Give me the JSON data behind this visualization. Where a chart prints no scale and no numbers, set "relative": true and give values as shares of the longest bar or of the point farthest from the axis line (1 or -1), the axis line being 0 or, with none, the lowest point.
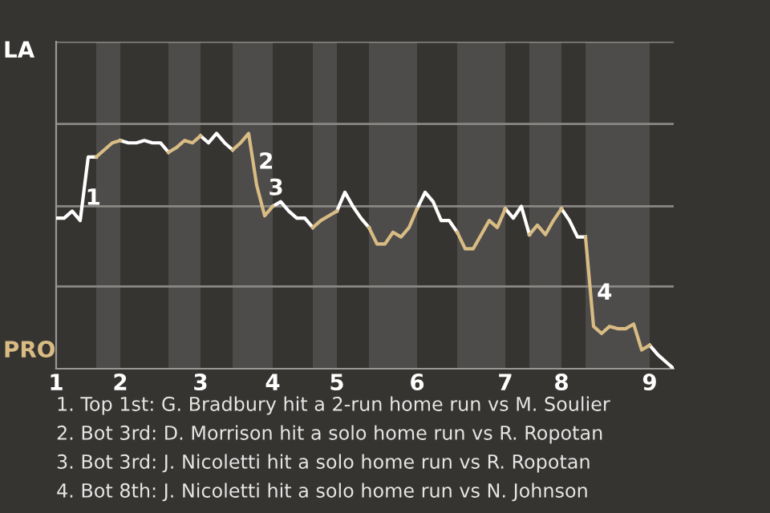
{
  "chart_data": {
    "type": "line",
    "relative": true,
    "categories": [
      "1",
      null,
      null,
      null,
      null,
      null,
      null,
      null,
      "2",
      null,
      null,
      null,
      null,
      null,
      null,
      null,
      null,
      null,
      "3",
      null,
      null,
      null,
      null,
      null,
      null,
      null,
      null,
      "4",
      null,
      null,
      null,
      null,
      null,
      null,
      null,
      "5",
      null,
      null,
      null,
      null,
      null,
      null,
      null,
      null,
      null,
      "6",
      null,
      null,
      null,
      null,
      null,
      null,
      null,
      null,
      null,
      null,
      "7",
      null,
      null,
      null,
      null,
      null,
      null,
      "8",
      null,
      null,
      null,
      null,
      null,
      null,
      null,
      null,
      null,
      null,
      "9",
      null,
      null,
      null
    ],
    "ref_lines": [
      {
        "axis": "y",
        "value": 0.35,
        "color": "#8a8885"
      },
      {
        "axis": "y",
        "value": 0.69,
        "color": "#8a8885"
      },
      {
        "axis": "y",
        "value": 1.04,
        "color": "#8a8885"
      },
      {
        "axis": "y",
        "value": 1.39,
        "color": "#8a8885"
      }
    ],
    "line_style": "solid",
    "marker": "none",
    "series": [
      {
        "color": "#ffffff",
        "values": [
          0.64,
          0.64,
          0.67,
          0.63,
          0.9,
          0.9,
          null,
          null,
          0.97,
          0.96,
          0.96,
          0.97,
          0.96,
          0.96,
          0.92,
          null,
          null,
          null,
          0.99,
          0.96,
          1.0,
          0.96,
          0.93,
          null,
          null,
          null,
          null,
          0.69,
          0.71,
          0.67,
          0.64,
          0.64,
          0.6,
          null,
          null,
          0.67,
          0.75,
          0.69,
          0.64,
          0.6,
          null,
          null,
          null,
          null,
          null,
          0.68,
          0.75,
          0.71,
          0.63,
          0.63,
          0.58,
          null,
          null,
          null,
          null,
          null,
          0.68,
          0.64,
          0.69,
          0.57,
          null,
          null,
          null,
          0.68,
          0.63,
          0.56,
          0.56,
          null,
          null,
          null,
          null,
          null,
          null,
          null,
          0.1,
          0.06,
          0.03,
          0
        ]
      },
      {
        "color": "#d9bc84",
        "values": [
          null,
          null,
          null,
          null,
          null,
          0.9,
          0.93,
          0.96,
          0.97,
          null,
          null,
          null,
          null,
          null,
          0.92,
          0.94,
          0.97,
          0.96,
          0.99,
          null,
          null,
          null,
          0.93,
          0.96,
          1.0,
          0.78,
          0.65,
          0.69,
          null,
          null,
          null,
          null,
          0.6,
          0.63,
          0.65,
          0.67,
          null,
          null,
          null,
          0.6,
          0.53,
          0.53,
          0.58,
          0.56,
          0.6,
          0.68,
          null,
          null,
          null,
          null,
          0.58,
          0.51,
          0.51,
          0.57,
          0.63,
          0.6,
          0.68,
          null,
          null,
          0.57,
          0.61,
          0.57,
          0.63,
          0.68,
          null,
          null,
          0.56,
          0.18,
          0.15,
          0.18,
          0.17,
          0.17,
          0.19,
          0.08,
          0.1,
          null,
          null,
          null
        ]
      }
    ],
    "annotations": [
      "LA",
      "PRO",
      "1",
      "2",
      "3",
      "4",
      "1. Top 1st: G. Bradbury hit a 2-run home run vs M. Soulier",
      "2. Bot 3rd: D. Morrison hit a solo home run vs R. Ropotan",
      "3. Bot 3rd: J. Nicoletti hit a solo home run vs R. Ropotan",
      "4. Bot 8th: J. Nicoletti hit a solo home run vs N. Johnson"
    ]
  }
}
